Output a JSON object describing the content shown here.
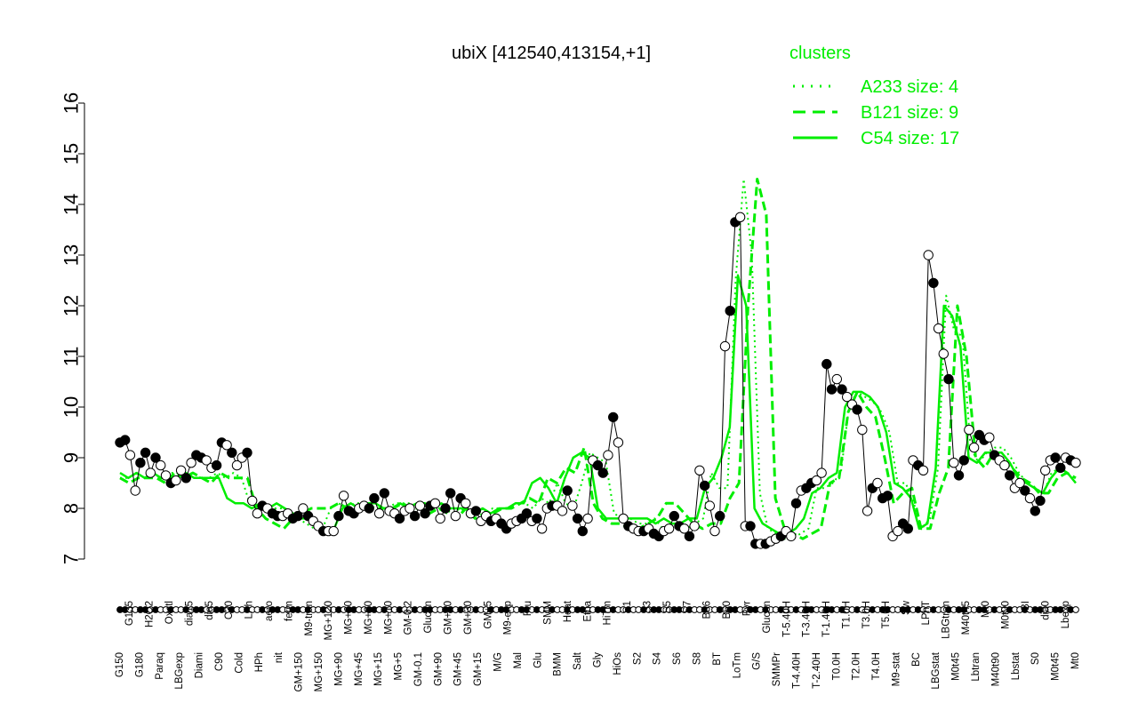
{
  "chart_data": {
    "type": "line",
    "title": "ubiX [412540,413154,+1]",
    "xlabel": "",
    "ylabel": "",
    "ylim": [
      7,
      16
    ],
    "yticks": [
      7,
      8,
      9,
      10,
      11,
      12,
      13,
      14,
      15,
      16
    ],
    "grid": false,
    "legend": {
      "title": "clusters",
      "placement": "top-right",
      "entries": [
        {
          "label": "A233 size: 4",
          "style": "dotted"
        },
        {
          "label": "B121 size: 9",
          "style": "dashed"
        },
        {
          "label": "C54 size: 17",
          "style": "solid"
        }
      ]
    },
    "colors": {
      "line": "#00ee00",
      "points": "#000000",
      "legend": "#00ee00",
      "axis": "#000000"
    },
    "x_tick_labels_top": [
      "G150",
      "G135",
      "G180",
      "H2O2",
      "Paraq",
      "Oxctl",
      "LBGexp",
      "dia15",
      "Diami",
      "dia5",
      "C90",
      "C30",
      "Cold",
      "LPh",
      "HPh",
      "aero",
      "nit",
      "ferm",
      "GM+150",
      "M9-tran",
      "MG+150",
      "MG+120",
      "MG+90",
      "MG+60",
      "MG+45",
      "MG+30",
      "MG+15",
      "MG+10",
      "MG+5",
      "GM-0.2",
      "GM-0.1",
      "Glucon",
      "GM+90",
      "GM+60",
      "GM+45",
      "GM+30",
      "GM+15",
      "GM+5",
      "M/G",
      "M9-exp",
      "Mal",
      "Fru",
      "Glu",
      "SMM",
      "BMM",
      "Heat",
      "Salt",
      "Etha",
      "Gly",
      "HiTm",
      "HiOs",
      "S1",
      "S2",
      "S3",
      "S4",
      "S5",
      "S6",
      "S7",
      "S8",
      "B36",
      "BT",
      "B60",
      "LoTm",
      "Pyr",
      "G/S",
      "Glucon",
      "SMMPr",
      "T-5.40H",
      "T-4.40H",
      "T-3.40H",
      "T-2.40H",
      "T-1.40H",
      "T0.0H",
      "T1.0H",
      "T2.0H",
      "T3.0H",
      "T4.0H",
      "T5.0H",
      "M9-stat",
      "Sw",
      "BC",
      "LPhT",
      "LBGstat",
      "LBGtran",
      "M0t45",
      "M40t45",
      "Lbtran",
      "Mt0",
      "M40t90",
      "M0t90",
      "Lbstat",
      "BI",
      "S0",
      "dia0",
      "M0t45",
      "Lbexp",
      "Mt0"
    ],
    "points": [
      {
        "label": "G150",
        "y": 9.3
      },
      {
        "label": "G150",
        "y": 9.35
      },
      {
        "label": "G135",
        "y": 9.05
      },
      {
        "label": "G180",
        "y": 8.35
      },
      {
        "label": "G180",
        "y": 8.9
      },
      {
        "label": "G180",
        "y": 9.1
      },
      {
        "label": "H2O2",
        "y": 8.7
      },
      {
        "label": "H2O2",
        "y": 9.0
      },
      {
        "label": "H2O2",
        "y": 8.85
      },
      {
        "label": "Paraq",
        "y": 8.65
      },
      {
        "label": "Paraq",
        "y": 8.5
      },
      {
        "label": "Paraq",
        "y": 8.55
      },
      {
        "label": "Oxctl",
        "y": 8.75
      },
      {
        "label": "Oxctl",
        "y": 8.6
      },
      {
        "label": "LBGexp",
        "y": 8.9
      },
      {
        "label": "LBGexp",
        "y": 9.05
      },
      {
        "label": "LBGexp",
        "y": 9.0
      },
      {
        "label": "dia15",
        "y": 8.95
      },
      {
        "label": "dia15",
        "y": 8.8
      },
      {
        "label": "dia15",
        "y": 8.85
      },
      {
        "label": "Diami",
        "y": 9.3
      },
      {
        "label": "Diami",
        "y": 9.25
      },
      {
        "label": "Diami",
        "y": 9.1
      },
      {
        "label": "dia5",
        "y": 8.85
      },
      {
        "label": "dia5",
        "y": 9.0
      },
      {
        "label": "dia5",
        "y": 9.1
      },
      {
        "label": "C90",
        "y": 8.15
      },
      {
        "label": "C90",
        "y": 7.9
      },
      {
        "label": "C30",
        "y": 8.05
      },
      {
        "label": "C30",
        "y": 8.0
      },
      {
        "label": "Cold",
        "y": 7.9
      },
      {
        "label": "Cold",
        "y": 7.85
      },
      {
        "label": "LPh",
        "y": 7.85
      },
      {
        "label": "LPh",
        "y": 7.9
      },
      {
        "label": "HPh",
        "y": 7.8
      },
      {
        "label": "HPh",
        "y": 7.85
      },
      {
        "label": "aero",
        "y": 8.0
      },
      {
        "label": "aero",
        "y": 7.85
      },
      {
        "label": "aero",
        "y": 7.75
      },
      {
        "label": "nit",
        "y": 7.65
      },
      {
        "label": "nit",
        "y": 7.55
      },
      {
        "label": "ferm",
        "y": 7.55
      },
      {
        "label": "ferm",
        "y": 7.55
      },
      {
        "label": "GM+150",
        "y": 7.85
      },
      {
        "label": "GM+150",
        "y": 8.25
      },
      {
        "label": "M9-tran",
        "y": 7.95
      },
      {
        "label": "MG+150",
        "y": 7.9
      },
      {
        "label": "MG+120",
        "y": 8.0
      },
      {
        "label": "MG+90",
        "y": 8.05
      },
      {
        "label": "MG+60",
        "y": 8.0
      },
      {
        "label": "MG+45",
        "y": 8.2
      },
      {
        "label": "MG+30",
        "y": 7.9
      },
      {
        "label": "MG+15",
        "y": 8.3
      },
      {
        "label": "MG+10",
        "y": 7.95
      },
      {
        "label": "MG+5",
        "y": 7.9
      },
      {
        "label": "MG+5",
        "y": 7.8
      },
      {
        "label": "GM-0.2",
        "y": 7.95
      },
      {
        "label": "GM-0.1",
        "y": 8.0
      },
      {
        "label": "Glucon",
        "y": 7.85
      },
      {
        "label": "Glucon",
        "y": 8.05
      },
      {
        "label": "GM+90",
        "y": 7.9
      },
      {
        "label": "GM+60",
        "y": 8.05
      },
      {
        "label": "GM+45",
        "y": 8.1
      },
      {
        "label": "GM+45",
        "y": 7.8
      },
      {
        "label": "GM+30",
        "y": 8.0
      },
      {
        "label": "GM+30",
        "y": 8.3
      },
      {
        "label": "GM+15",
        "y": 7.85
      },
      {
        "label": "GM+15",
        "y": 8.2
      },
      {
        "label": "GM+5",
        "y": 8.1
      },
      {
        "label": "GM+5",
        "y": 7.9
      },
      {
        "label": "M/G",
        "y": 7.95
      },
      {
        "label": "M9-exp",
        "y": 7.75
      },
      {
        "label": "M9-exp",
        "y": 7.85
      },
      {
        "label": "M/G",
        "y": 7.75
      },
      {
        "label": "Mal",
        "y": 7.8
      },
      {
        "label": "Mal",
        "y": 7.7
      },
      {
        "label": "Fru",
        "y": 7.6
      },
      {
        "label": "Fru",
        "y": 7.7
      },
      {
        "label": "Glu",
        "y": 7.75
      },
      {
        "label": "Glu",
        "y": 7.8
      },
      {
        "label": "SMM",
        "y": 7.9
      },
      {
        "label": "SMM",
        "y": 7.75
      },
      {
        "label": "BMM",
        "y": 7.8
      },
      {
        "label": "BMM",
        "y": 7.6
      },
      {
        "label": "Heat",
        "y": 8.0
      },
      {
        "label": "Heat",
        "y": 8.05
      },
      {
        "label": "Salt",
        "y": 8.05
      },
      {
        "label": "Salt",
        "y": 7.95
      },
      {
        "label": "Etha",
        "y": 8.35
      },
      {
        "label": "Etha",
        "y": 8.05
      },
      {
        "label": "Gly",
        "y": 7.8
      },
      {
        "label": "Gly",
        "y": 7.55
      },
      {
        "label": "Gly",
        "y": 7.8
      },
      {
        "label": "HiTm",
        "y": 8.95
      },
      {
        "label": "HiTm",
        "y": 8.85
      },
      {
        "label": "HiTm",
        "y": 8.7
      },
      {
        "label": "HiOs",
        "y": 9.05
      },
      {
        "label": "HiOs",
        "y": 9.8
      },
      {
        "label": "HiOs",
        "y": 9.3
      },
      {
        "label": "S1",
        "y": 7.8
      },
      {
        "label": "S1",
        "y": 7.65
      },
      {
        "label": "S2",
        "y": 7.6
      },
      {
        "label": "S2",
        "y": 7.55
      },
      {
        "label": "S3",
        "y": 7.55
      },
      {
        "label": "S3",
        "y": 7.6
      },
      {
        "label": "S4",
        "y": 7.5
      },
      {
        "label": "S4",
        "y": 7.45
      },
      {
        "label": "S5",
        "y": 7.55
      },
      {
        "label": "S5",
        "y": 7.6
      },
      {
        "label": "S6",
        "y": 7.85
      },
      {
        "label": "S6",
        "y": 7.65
      },
      {
        "label": "S7",
        "y": 7.6
      },
      {
        "label": "S7",
        "y": 7.45
      },
      {
        "label": "S8",
        "y": 7.65
      },
      {
        "label": "S8",
        "y": 8.75
      },
      {
        "label": "B36",
        "y": 8.45
      },
      {
        "label": "B36",
        "y": 8.05
      },
      {
        "label": "BT",
        "y": 7.55
      },
      {
        "label": "BT",
        "y": 7.85
      },
      {
        "label": "B36",
        "y": 11.2
      },
      {
        "label": "B36",
        "y": 11.9
      },
      {
        "label": "B60",
        "y": 13.65
      },
      {
        "label": "B60",
        "y": 13.75
      },
      {
        "label": "LoTm",
        "y": 7.65
      },
      {
        "label": "LoTm",
        "y": 7.65
      },
      {
        "label": "Pyr",
        "y": 7.3
      },
      {
        "label": "Pyr",
        "y": 7.3
      },
      {
        "label": "G/S",
        "y": 7.3
      },
      {
        "label": "G/S",
        "y": 7.35
      },
      {
        "label": "Glucon",
        "y": 7.4
      },
      {
        "label": "Glucon",
        "y": 7.45
      },
      {
        "label": "SMMPr",
        "y": 7.55
      },
      {
        "label": "SMMPr",
        "y": 7.45
      },
      {
        "label": "T-5.40H",
        "y": 8.1
      },
      {
        "label": "T-4.40H",
        "y": 8.35
      },
      {
        "label": "T-3.40H",
        "y": 8.4
      },
      {
        "label": "T-2.40H",
        "y": 8.5
      },
      {
        "label": "T-1.40H",
        "y": 8.55
      },
      {
        "label": "T0.0H",
        "y": 8.7
      },
      {
        "label": "T1.0H",
        "y": 10.85
      },
      {
        "label": "T2.0H",
        "y": 10.35
      },
      {
        "label": "T2.0H",
        "y": 10.55
      },
      {
        "label": "T3.0H",
        "y": 10.35
      },
      {
        "label": "T3.0H",
        "y": 10.2
      },
      {
        "label": "T4.0H",
        "y": 10.05
      },
      {
        "label": "T4.0H",
        "y": 9.95
      },
      {
        "label": "T5.0H",
        "y": 9.55
      },
      {
        "label": "M9-stat",
        "y": 7.95
      },
      {
        "label": "M9-stat",
        "y": 8.4
      },
      {
        "label": "M9-stat",
        "y": 8.5
      },
      {
        "label": "Sw",
        "y": 8.2
      },
      {
        "label": "Sw",
        "y": 8.25
      },
      {
        "label": "BC",
        "y": 7.45
      },
      {
        "label": "BC",
        "y": 7.55
      },
      {
        "label": "BC",
        "y": 7.7
      },
      {
        "label": "BC",
        "y": 7.6
      },
      {
        "label": "LPhT",
        "y": 8.95
      },
      {
        "label": "LPhT",
        "y": 8.85
      },
      {
        "label": "LPhT",
        "y": 8.75
      },
      {
        "label": "LBGstat",
        "y": 13.0
      },
      {
        "label": "LBGstat",
        "y": 12.45
      },
      {
        "label": "LBGtran",
        "y": 11.55
      },
      {
        "label": "LBGtran",
        "y": 11.05
      },
      {
        "label": "LBGtran",
        "y": 10.55
      },
      {
        "label": "M0t45",
        "y": 8.9
      },
      {
        "label": "M40t45",
        "y": 8.65
      },
      {
        "label": "M40t45",
        "y": 8.95
      },
      {
        "label": "Lbtran",
        "y": 9.55
      },
      {
        "label": "Lbtran",
        "y": 9.2
      },
      {
        "label": "Mt0",
        "y": 9.45
      },
      {
        "label": "Mt0",
        "y": 9.35
      },
      {
        "label": "M40t90",
        "y": 9.4
      },
      {
        "label": "M40t90",
        "y": 9.05
      },
      {
        "label": "M0t90",
        "y": 8.95
      },
      {
        "label": "M0t90",
        "y": 8.85
      },
      {
        "label": "M0t90",
        "y": 8.65
      },
      {
        "label": "Lbstat",
        "y": 8.4
      },
      {
        "label": "Lbstat",
        "y": 8.5
      },
      {
        "label": "BI",
        "y": 8.35
      },
      {
        "label": "S0",
        "y": 8.2
      },
      {
        "label": "S0",
        "y": 7.95
      },
      {
        "label": "S0",
        "y": 8.15
      },
      {
        "label": "dia0",
        "y": 8.75
      },
      {
        "label": "dia0",
        "y": 8.95
      },
      {
        "label": "M0t45",
        "y": 9.0
      },
      {
        "label": "M0t45",
        "y": 8.8
      },
      {
        "label": "Lbexp",
        "y": 9.0
      },
      {
        "label": "Lbexp",
        "y": 8.95
      },
      {
        "label": "Mt0",
        "y": 8.9
      }
    ],
    "cluster_series": {
      "A233": [
        8.6,
        8.6,
        8.7,
        8.6,
        8.7,
        8.6,
        8.7,
        8.7,
        8.6,
        8.7,
        8.6,
        8.6,
        8.7,
        8.6,
        8.7,
        8.6,
        8.1,
        8.0,
        8.0,
        8.0,
        8.0,
        7.9,
        7.8,
        7.7,
        7.6,
        7.6,
        8.0,
        8.1,
        8.0,
        8.1,
        8.1,
        8.0,
        8.0,
        8.0,
        8.1,
        8.1,
        8.1,
        8.0,
        8.0,
        8.0,
        8.0,
        7.9,
        8.0,
        7.9,
        7.9,
        7.9,
        8.0,
        8.0,
        8.0,
        8.1,
        8.1,
        8.0,
        8.2,
        8.1,
        8.5,
        8.1,
        8.0,
        8.5,
        9.1,
        9.0,
        8.9,
        7.9,
        7.8,
        7.8,
        7.7,
        7.7,
        7.8,
        7.6,
        7.7,
        7.7,
        7.6,
        7.7,
        7.8,
        8.7,
        8.4,
        8.4,
        12.5,
        14.5,
        13.0,
        8.3,
        7.6,
        7.5,
        7.4,
        7.4,
        7.5,
        7.6,
        8.4,
        8.4,
        8.5,
        8.7,
        10.0,
        10.3,
        10.2,
        10.1,
        9.9,
        9.5,
        8.5,
        8.5,
        8.1,
        7.6,
        7.8,
        8.8,
        12.2,
        11.5,
        11.4,
        9.2,
        8.9,
        9.1,
        9.2,
        9.2,
        9.0,
        8.7,
        8.5,
        8.4,
        8.3,
        8.7,
        8.8,
        8.7,
        8.5
      ],
      "B121": [
        8.6,
        8.5,
        8.6,
        8.6,
        8.6,
        8.5,
        8.7,
        8.6,
        8.7,
        8.6,
        8.5,
        8.7,
        8.6,
        8.6,
        8.6,
        8.0,
        7.8,
        7.7,
        7.6,
        7.8,
        7.9,
        8.0,
        8.0,
        8.0,
        8.1,
        8.0,
        8.0,
        8.1,
        8.0,
        8.0,
        8.0,
        8.1,
        8.0,
        8.0,
        7.9,
        8.0,
        7.9,
        7.8,
        8.0,
        7.8,
        7.9,
        7.9,
        8.0,
        8.0,
        8.1,
        8.2,
        8.1,
        8.6,
        8.5,
        8.8,
        8.7,
        9.2,
        8.1,
        7.8,
        7.7,
        7.7,
        7.6,
        7.6,
        7.7,
        7.8,
        8.1,
        8.1,
        7.9,
        7.7,
        7.6,
        7.7,
        7.7,
        8.2,
        8.5,
        12.0,
        14.5,
        13.8,
        8.2,
        7.6,
        7.5,
        7.4,
        7.5,
        7.6,
        8.5,
        8.6,
        9.9,
        10.3,
        10.0,
        9.8,
        9.0,
        8.1,
        8.3,
        8.4,
        7.6,
        7.6,
        8.3,
        8.8,
        12.0,
        11.0,
        9.0,
        8.8,
        9.1,
        8.9,
        8.8,
        8.6,
        8.5,
        8.3,
        8.3,
        8.6,
        8.7,
        8.6
      ],
      "C54": [
        8.7,
        8.6,
        8.7,
        8.6,
        8.7,
        8.6,
        8.6,
        8.6,
        8.7,
        8.6,
        8.6,
        8.6,
        8.6,
        8.2,
        8.1,
        8.1,
        8.0,
        8.1,
        8.0,
        8.1,
        8.0,
        7.9,
        7.8,
        7.8,
        7.7,
        7.6,
        7.6,
        8.0,
        8.1,
        8.0,
        8.1,
        8.1,
        8.0,
        8.0,
        8.1,
        8.0,
        8.1,
        8.1,
        8.0,
        8.1,
        8.0,
        8.0,
        8.0,
        7.9,
        8.0,
        7.9,
        8.0,
        8.0,
        8.1,
        8.1,
        8.5,
        8.6,
        8.4,
        8.1,
        8.6,
        9.0,
        9.1,
        9.0,
        8.0,
        7.8,
        7.8,
        7.8,
        7.8,
        7.8,
        7.8,
        7.7,
        7.8,
        7.7,
        7.7,
        7.8,
        7.8,
        8.4,
        8.6,
        9.0,
        9.6,
        12.6,
        12.0,
        8.0,
        7.7,
        7.6,
        7.5,
        7.5,
        7.6,
        7.8,
        8.3,
        8.4,
        8.6,
        8.7,
        10.0,
        10.3,
        10.3,
        10.2,
        10.0,
        9.5,
        8.5,
        8.4,
        8.2,
        7.6,
        7.7,
        8.8,
        12.0,
        11.8,
        11.2,
        9.0,
        8.9,
        9.1,
        9.1,
        9.1,
        8.9,
        8.6,
        8.5,
        8.4,
        8.3,
        8.6,
        8.8,
        8.7,
        8.5
      ]
    }
  }
}
